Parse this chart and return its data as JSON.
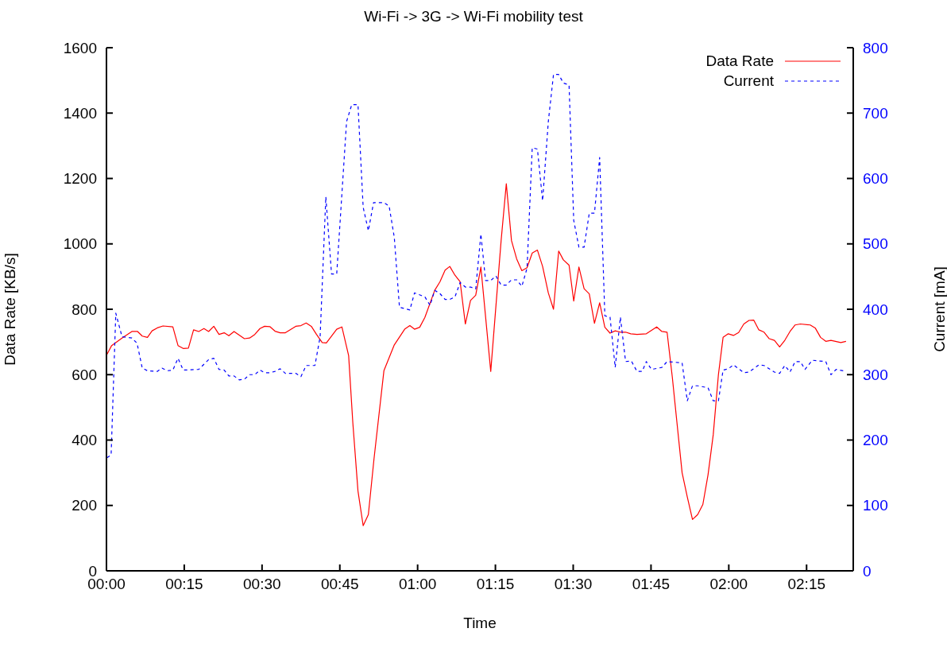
{
  "chart_data": {
    "type": "line",
    "title": "Wi-Fi -> 3G -> Wi-Fi mobility test",
    "xlabel": "Time",
    "ylabel": "Data Rate [KB/s]",
    "y2label": "Current [mA]",
    "xlim": [
      0,
      144
    ],
    "xticks": [
      {
        "value": 0,
        "label": "00:00"
      },
      {
        "value": 15,
        "label": "00:15"
      },
      {
        "value": 30,
        "label": "00:30"
      },
      {
        "value": 45,
        "label": "00:45"
      },
      {
        "value": 60,
        "label": "01:00"
      },
      {
        "value": 75,
        "label": "01:15"
      },
      {
        "value": 90,
        "label": "01:30"
      },
      {
        "value": 105,
        "label": "01:45"
      },
      {
        "value": 120,
        "label": "02:00"
      },
      {
        "value": 135,
        "label": "02:15"
      }
    ],
    "ylim": [
      0,
      1600
    ],
    "yticks": [
      0,
      200,
      400,
      600,
      800,
      1000,
      1200,
      1400,
      1600
    ],
    "y2lim": [
      0,
      800
    ],
    "y2ticks": [
      0,
      100,
      200,
      300,
      400,
      500,
      600,
      700,
      800
    ],
    "grid": false,
    "legend": "top right",
    "marker": "none",
    "series": [
      {
        "name": "Data Rate",
        "color": "#ff0000",
        "line_style": "solid",
        "x": [
          0.1,
          1.0,
          3.0,
          4.9,
          6.0,
          6.9,
          7.9,
          8.8,
          9.8,
          10.9,
          12.8,
          13.8,
          14.8,
          15.8,
          16.8,
          17.8,
          18.8,
          19.7,
          20.7,
          21.7,
          22.7,
          23.6,
          24.6,
          25.6,
          26.6,
          27.6,
          28.6,
          29.6,
          30.5,
          31.5,
          32.5,
          33.5,
          34.5,
          35.5,
          36.5,
          37.5,
          38.5,
          39.5,
          40.5,
          41.6,
          42.4,
          44.4,
          45.4,
          46.7,
          47.5,
          48.5,
          49.5,
          50.5,
          51.6,
          53.5,
          55.5,
          57.5,
          58.5,
          59.4,
          60.4,
          61.4,
          63.3,
          64.3,
          65.3,
          66.2,
          67.2,
          68.2,
          69.2,
          70.2,
          71.2,
          72.2,
          74.1,
          76.1,
          77.1,
          78.1,
          79.1,
          80.1,
          81.1,
          82.1,
          83.1,
          84.1,
          85.2,
          86.2,
          87.2,
          88.1,
          89.2,
          90.1,
          91.1,
          92.1,
          93.1,
          94.1,
          95.1,
          96.1,
          97.1,
          98.1,
          99.1,
          100.1,
          101.1,
          102.3,
          104.1,
          106.1,
          107.1,
          108.1,
          109.1,
          110,
          111,
          112,
          113,
          114,
          115,
          116,
          117,
          118,
          118.9,
          119.9,
          120.9,
          121.9,
          122.9,
          123.9,
          124.8,
          125.8,
          126.8,
          127.8,
          128.8,
          129.8,
          130.8,
          131.8,
          132.8,
          133.8,
          135.7,
          136.7,
          137.7,
          138.7,
          139.7,
          141.6,
          142.6
        ],
        "values": [
          662,
          689,
          712,
          732,
          732,
          718,
          714,
          734,
          743,
          749,
          746,
          689,
          680,
          681,
          737,
          732,
          741,
          732,
          748,
          723,
          728,
          719,
          732,
          721,
          710,
          712,
          723,
          741,
          748,
          747,
          733,
          728,
          728,
          738,
          748,
          750,
          758,
          748,
          723,
          698,
          697,
          739,
          746,
          658,
          454,
          244,
          138,
          172,
          344,
          612,
          691,
          739,
          750,
          739,
          745,
          775,
          858,
          884,
          920,
          931,
          904,
          884,
          755,
          827,
          843,
          929,
          610,
          1010,
          1184,
          1010,
          954,
          918,
          927,
          972,
          981,
          931,
          850,
          800,
          978,
          951,
          935,
          825,
          929,
          863,
          847,
          757,
          820,
          745,
          727,
          734,
          730,
          730,
          725,
          723,
          725,
          746,
          732,
          730,
          594,
          454,
          300,
          226,
          157,
          172,
          203,
          294,
          416,
          600,
          714,
          725,
          720,
          729,
          755,
          766,
          767,
          737,
          730,
          710,
          705,
          685,
          705,
          732,
          752,
          755,
          752,
          742,
          714,
          702,
          705,
          698,
          702
        ]
      },
      {
        "name": "Current",
        "color": "#0000ff",
        "line_style": "dashed",
        "axis": "y2",
        "x": [
          0.1,
          0.9,
          1.8,
          3.0,
          4.9,
          5.9,
          6.9,
          7.9,
          9.8,
          10.7,
          11.7,
          12.8,
          13.8,
          14.8,
          17.8,
          19.7,
          20.7,
          21.7,
          22.7,
          23.6,
          24.6,
          25.6,
          26.6,
          27.6,
          28.6,
          29.6,
          30.5,
          31.5,
          32.5,
          33.5,
          34.5,
          36.5,
          37.5,
          38.5,
          40.2,
          41.2,
          42.3,
          43.4,
          44.4,
          46.3,
          47.3,
          48.5,
          49.5,
          50.5,
          51.5,
          53.5,
          54.5,
          55.5,
          56.5,
          58.5,
          59.4,
          61.4,
          62.4,
          63.3,
          64.3,
          65.3,
          66.2,
          67.2,
          68.2,
          69.2,
          70.2,
          71.2,
          72.2,
          73.1,
          74.1,
          75.1,
          76.1,
          77.1,
          78.1,
          79.1,
          80.1,
          81.1,
          82.1,
          83.1,
          84.1,
          85.2,
          86.2,
          87.2,
          88.1,
          89.2,
          90.1,
          91.1,
          92.1,
          93.1,
          94.1,
          95.1,
          96.1,
          97.1,
          98.1,
          99.1,
          100.1,
          101.2,
          102.3,
          103.3,
          104.1,
          105.1,
          107.1,
          108.1,
          111,
          112,
          113,
          114,
          116,
          117,
          118,
          118.9,
          119.9,
          120.9,
          122.9,
          123.9,
          125.8,
          126.8,
          128.8,
          129.8,
          130.8,
          131.8,
          132.8,
          133.8,
          134.7,
          136.1,
          138.7,
          139.7,
          140.7,
          142.6
        ],
        "values": [
          173,
          177,
          394,
          358,
          356,
          348,
          310,
          306,
          305,
          310,
          306,
          307,
          325,
          307,
          308,
          323,
          325,
          308,
          307,
          298,
          298,
          292,
          293,
          300,
          300,
          307,
          303,
          303,
          305,
          309,
          302,
          302,
          297,
          314,
          314,
          358,
          572,
          454,
          454,
          687,
          713,
          713,
          556,
          520,
          563,
          563,
          558,
          510,
          403,
          399,
          425,
          419,
          406,
          429,
          424,
          415,
          415,
          419,
          441,
          434,
          434,
          431,
          515,
          444,
          444,
          451,
          437,
          437,
          445,
          445,
          435,
          463,
          647,
          645,
          566,
          687,
          759,
          759,
          746,
          743,
          536,
          495,
          495,
          547,
          547,
          632,
          390,
          388,
          311,
          388,
          320,
          321,
          305,
          305,
          320,
          308,
          311,
          320,
          318,
          260,
          283,
          283,
          280,
          260,
          260,
          307,
          309,
          315,
          303,
          304,
          315,
          314,
          304,
          302,
          314,
          304,
          320,
          320,
          308,
          322,
          320,
          300,
          308,
          305
        ]
      }
    ]
  }
}
